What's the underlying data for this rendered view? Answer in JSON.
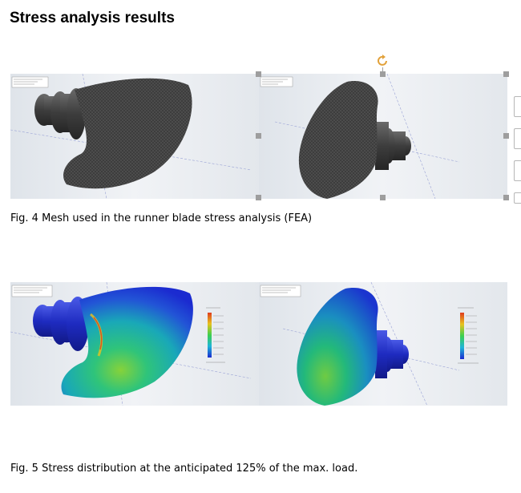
{
  "heading": "Stress analysis results",
  "figures": [
    {
      "caption": "Fig. 4 Mesh used in the runner blade stress analysis (FEA)",
      "views": [
        "mesh-side-view",
        "mesh-front-view"
      ]
    },
    {
      "caption": "Fig. 5 Stress distribution at the anticipated 125% of the max. load.",
      "views": [
        "stress-side-view",
        "stress-front-view"
      ]
    }
  ],
  "selection": {
    "rotate_icon": "rotate-handle-icon",
    "color": "#e2a13a"
  },
  "colors": {
    "mesh": "#4a4a4a",
    "stress_low": "#1b2bd0",
    "stress_mid": "#1fbf6e",
    "stress_high": "#e03c1e"
  }
}
